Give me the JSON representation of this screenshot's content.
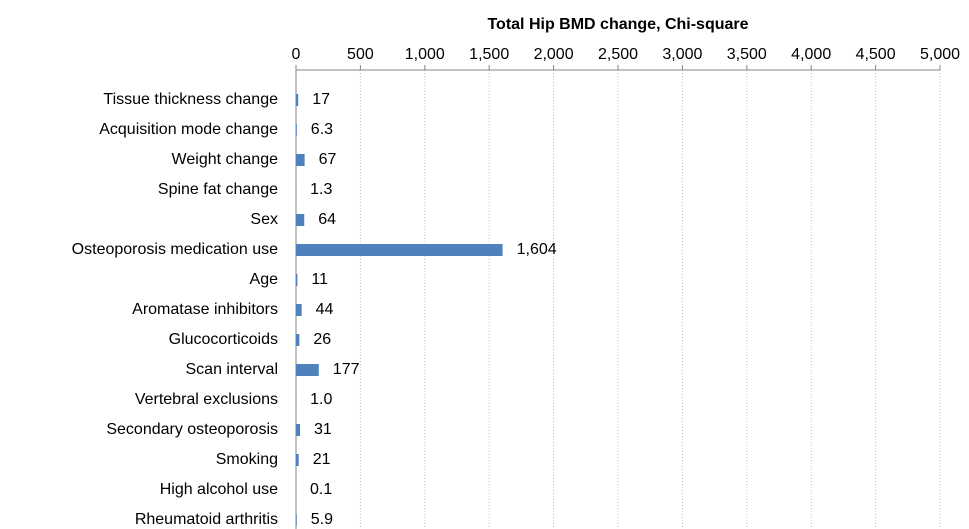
{
  "chart_data": {
    "type": "bar",
    "title": "Total Hip BMD change, Chi-square",
    "categories": [
      "Tissue thickness change",
      "Acquisition mode change",
      "Weight change",
      "Spine fat change",
      "Sex",
      "Osteoporosis medication use",
      "Age",
      "Aromatase inhibitors",
      "Glucocorticoids",
      "Scan interval",
      "Vertebral exclusions",
      "Secondary osteoporosis",
      "Smoking",
      "High alcohol use",
      "Rheumatoid arthritis"
    ],
    "values": [
      17,
      6.3,
      67,
      1.3,
      64,
      1604,
      11,
      44,
      26,
      177,
      1.0,
      31,
      21,
      0.1,
      5.9
    ],
    "value_labels": [
      "17",
      "6.3",
      "67",
      "1.3",
      "64",
      "1,604",
      "11",
      "44",
      "26",
      "177",
      "1.0",
      "31",
      "21",
      "0.1",
      "5.9"
    ],
    "color": "#4f81bd",
    "xlim": [
      0,
      5000
    ],
    "xticks": [
      0,
      500,
      {
        "value": 1000,
        "label": "1,000"
      },
      {
        "value": 1500,
        "label": "1,500"
      },
      {
        "value": 2000,
        "label": "2,000"
      },
      {
        "value": 2500,
        "label": "2,500"
      },
      {
        "value": 3000,
        "label": "3,000"
      },
      {
        "value": 3500,
        "label": "3,500"
      },
      {
        "value": 4000,
        "label": "4,000"
      },
      {
        "value": 4500,
        "label": "4,500"
      },
      {
        "value": 5000,
        "label": "5,000"
      }
    ],
    "grid": true
  }
}
